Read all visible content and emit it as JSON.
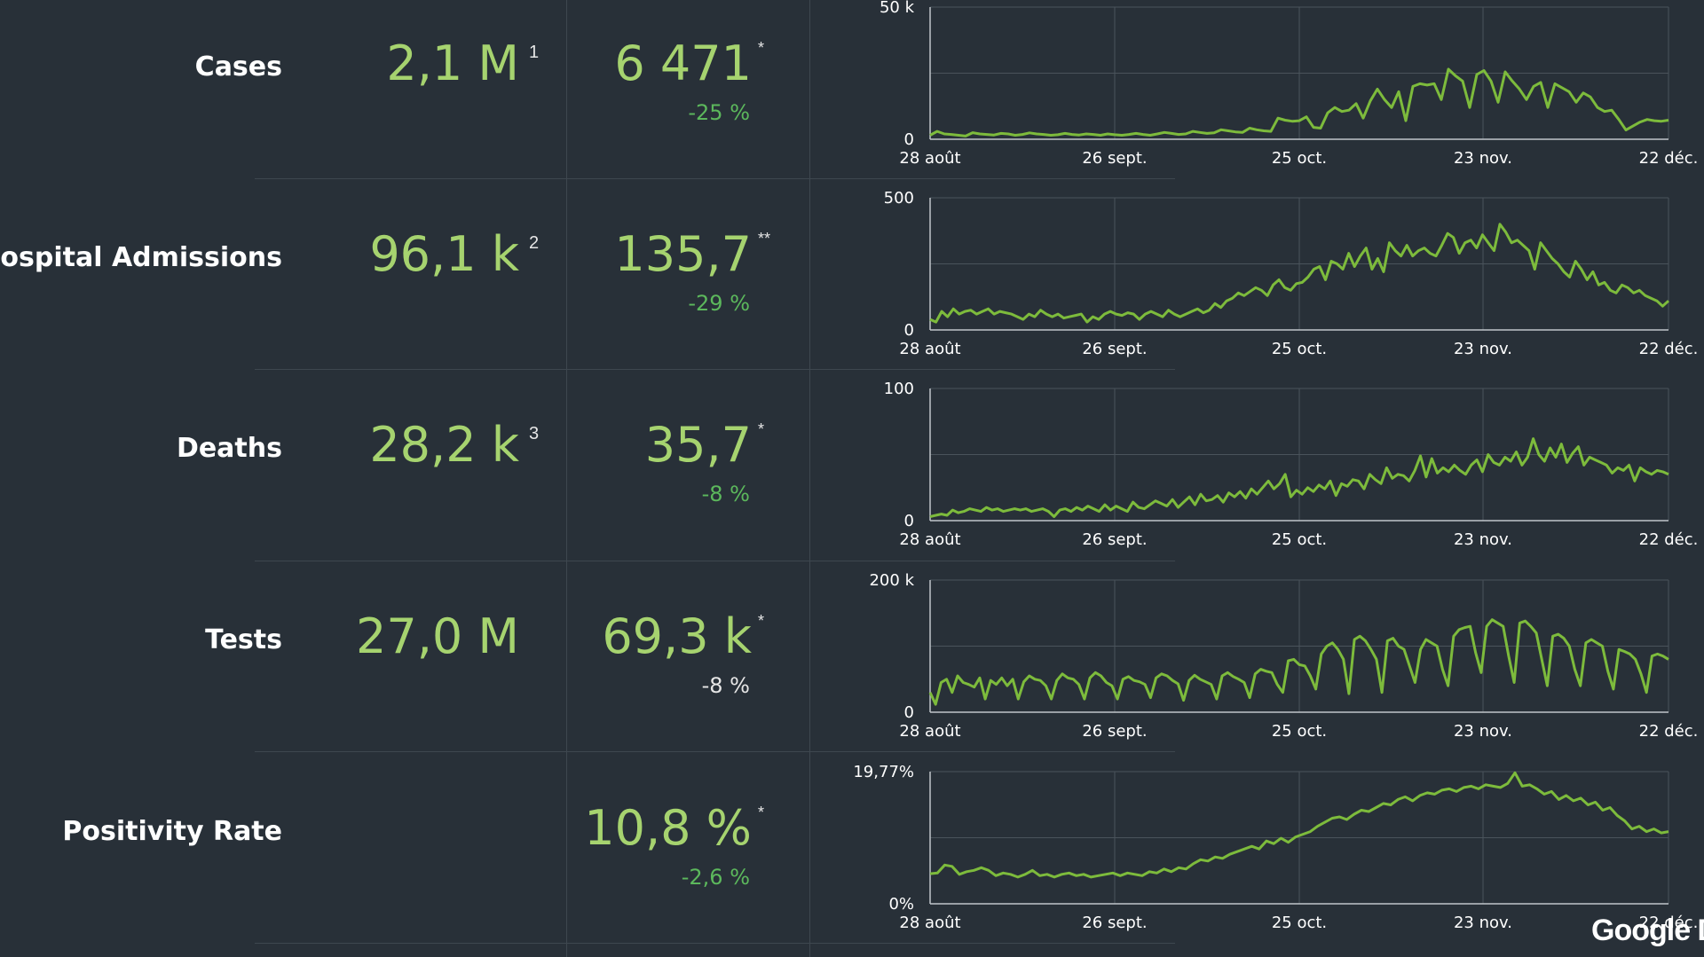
{
  "colors": {
    "background": "#283038",
    "value_green": "#a6d36f",
    "change_green": "#5cb85c",
    "neutral": "#e6e6e6",
    "line": "#7dbb3c",
    "grid": "#4a535b",
    "axis": "#bfc5ca"
  },
  "rows": [
    {
      "label": "Cases",
      "total": "2,1 M",
      "total_sup": "1",
      "recent": "6 471",
      "recent_sup": "*",
      "change": "-25 %",
      "change_color": "#5cb85c"
    },
    {
      "label": "Hospital Admissions",
      "total": "96,1 k",
      "total_sup": "2",
      "recent": "135,7",
      "recent_sup": "**",
      "change": "-29 %",
      "change_color": "#5cb85c"
    },
    {
      "label": "Deaths",
      "total": "28,2 k",
      "total_sup": "3",
      "recent": "35,7",
      "recent_sup": "*",
      "change": "-8 %",
      "change_color": "#5cb85c"
    },
    {
      "label": "Tests",
      "total": "27,0 M",
      "total_sup": "",
      "recent": "69,3 k",
      "recent_sup": "*",
      "change": "-8 %",
      "change_color": "#e6e6e6"
    },
    {
      "label": "Positivity Rate",
      "total": "",
      "total_sup": "",
      "recent": "10,8 %",
      "recent_sup": "*",
      "change": "-2,6 %",
      "change_color": "#5cb85c"
    }
  ],
  "logo_text": "Google D",
  "chart_data": [
    {
      "type": "line",
      "series": [
        {
          "values": [
            1500,
            3000,
            2000,
            1800,
            1500,
            1200,
            2500,
            2000,
            1800,
            1600,
            2200,
            2000,
            1500,
            1800,
            2400,
            2000,
            1800,
            1500,
            1700,
            2200,
            1800,
            1600,
            2000,
            1800,
            1500,
            2000,
            1700,
            1500,
            1800,
            2200,
            1800,
            1500,
            2000,
            2600,
            2200,
            1800,
            2000,
            3000,
            2600,
            2200,
            2400,
            3600,
            3200,
            2800,
            2600,
            4200,
            3600,
            3200,
            3000,
            8000,
            7200,
            6800,
            7000,
            8500,
            4500,
            4200,
            10000,
            12000,
            10500,
            11000,
            13500,
            8000,
            14500,
            19000,
            15000,
            12000,
            18000,
            7000,
            20000,
            21000,
            20500,
            21000,
            15000,
            26500,
            24000,
            22000,
            12000,
            24500,
            26000,
            22000,
            14000,
            25500,
            22000,
            19000,
            15000,
            20000,
            21500,
            12000,
            21000,
            19500,
            18000,
            14000,
            17500,
            16000,
            12000,
            10500,
            11000,
            7500,
            3500,
            5000,
            6500,
            7500,
            7000,
            6800,
            7200
          ]
        }
      ],
      "x_ticks": [
        "28 août",
        "26 sept.",
        "25 oct.",
        "23 nov.",
        "22 déc."
      ],
      "y_ticks": [
        "0",
        "50 k"
      ],
      "ylim": [
        0,
        50000
      ]
    },
    {
      "type": "line",
      "series": [
        {
          "values": [
            40,
            30,
            70,
            50,
            80,
            60,
            70,
            75,
            60,
            70,
            80,
            60,
            70,
            65,
            60,
            50,
            40,
            60,
            50,
            75,
            60,
            50,
            60,
            45,
            50,
            55,
            60,
            30,
            50,
            40,
            60,
            70,
            60,
            55,
            65,
            60,
            40,
            60,
            70,
            60,
            50,
            75,
            60,
            50,
            60,
            70,
            80,
            65,
            75,
            100,
            85,
            110,
            120,
            140,
            130,
            145,
            160,
            150,
            130,
            170,
            190,
            160,
            150,
            175,
            180,
            200,
            230,
            240,
            190,
            260,
            250,
            230,
            290,
            240,
            280,
            310,
            230,
            270,
            220,
            330,
            300,
            280,
            320,
            280,
            300,
            310,
            290,
            280,
            320,
            365,
            350,
            290,
            330,
            340,
            310,
            360,
            330,
            300,
            400,
            370,
            330,
            340,
            320,
            300,
            230,
            330,
            300,
            270,
            250,
            220,
            200,
            260,
            230,
            190,
            220,
            170,
            180,
            150,
            140,
            170,
            160,
            140,
            150,
            130,
            120,
            110,
            90,
            110
          ]
        }
      ],
      "x_ticks": [
        "28 août",
        "26 sept.",
        "25 oct.",
        "23 nov.",
        "22 déc."
      ],
      "y_ticks": [
        "0",
        "500"
      ],
      "ylim": [
        0,
        500
      ]
    },
    {
      "type": "line",
      "series": [
        {
          "values": [
            3,
            4,
            5,
            4,
            8,
            6,
            7,
            9,
            8,
            7,
            10,
            8,
            9,
            7,
            8,
            9,
            8,
            9,
            7,
            8,
            9,
            7,
            3,
            8,
            9,
            7,
            10,
            8,
            11,
            9,
            7,
            12,
            8,
            11,
            9,
            7,
            14,
            10,
            9,
            12,
            15,
            13,
            11,
            16,
            10,
            14,
            18,
            12,
            20,
            15,
            16,
            19,
            14,
            21,
            18,
            22,
            17,
            24,
            20,
            25,
            30,
            24,
            28,
            35,
            18,
            23,
            20,
            25,
            22,
            27,
            24,
            30,
            19,
            28,
            26,
            31,
            30,
            24,
            35,
            31,
            28,
            40,
            32,
            35,
            34,
            30,
            38,
            49,
            33,
            47,
            36,
            40,
            37,
            42,
            38,
            35,
            42,
            46,
            37,
            50,
            44,
            42,
            48,
            45,
            52,
            42,
            48,
            62,
            50,
            45,
            55,
            48,
            58,
            44,
            51,
            56,
            42,
            48,
            46,
            44,
            42,
            36,
            40,
            38,
            42,
            30,
            40,
            37,
            35,
            38,
            37,
            35
          ]
        }
      ],
      "x_ticks": [
        "28 août",
        "26 sept.",
        "25 oct.",
        "23 nov.",
        "22 déc."
      ],
      "y_ticks": [
        "0",
        "100"
      ],
      "ylim": [
        0,
        100
      ]
    },
    {
      "type": "line",
      "series": [
        {
          "values": [
            30000,
            12000,
            45000,
            50000,
            30000,
            55000,
            45000,
            42000,
            38000,
            52000,
            20000,
            48000,
            42000,
            52000,
            40000,
            50000,
            20000,
            46000,
            55000,
            50000,
            48000,
            40000,
            20000,
            48000,
            58000,
            52000,
            50000,
            42000,
            20000,
            52000,
            60000,
            55000,
            45000,
            40000,
            20000,
            50000,
            54000,
            48000,
            46000,
            42000,
            22000,
            52000,
            58000,
            55000,
            48000,
            43000,
            18000,
            48000,
            56000,
            50000,
            46000,
            42000,
            20000,
            55000,
            60000,
            54000,
            50000,
            45000,
            22000,
            58000,
            65000,
            62000,
            60000,
            42000,
            30000,
            78000,
            80000,
            72000,
            70000,
            55000,
            35000,
            88000,
            100000,
            105000,
            95000,
            80000,
            28000,
            110000,
            115000,
            108000,
            95000,
            80000,
            30000,
            108000,
            112000,
            100000,
            95000,
            70000,
            45000,
            95000,
            110000,
            105000,
            100000,
            65000,
            40000,
            115000,
            125000,
            128000,
            130000,
            90000,
            60000,
            130000,
            140000,
            135000,
            130000,
            85000,
            45000,
            135000,
            138000,
            130000,
            120000,
            80000,
            40000,
            115000,
            118000,
            112000,
            100000,
            65000,
            40000,
            105000,
            110000,
            105000,
            100000,
            62000,
            35000,
            95000,
            92000,
            88000,
            80000,
            58000,
            30000,
            85000,
            88000,
            85000,
            80000
          ]
        }
      ],
      "x_ticks": [
        "28 août",
        "26 sept.",
        "25 oct.",
        "23 nov.",
        "22 déc."
      ],
      "y_ticks": [
        "0",
        "200 k"
      ],
      "ylim": [
        0,
        200000
      ]
    },
    {
      "type": "line",
      "series": [
        {
          "values": [
            4.5,
            4.6,
            5.8,
            5.6,
            4.4,
            4.8,
            5.0,
            5.4,
            5.0,
            4.2,
            4.6,
            4.4,
            4.0,
            4.4,
            5.0,
            4.2,
            4.4,
            4.0,
            4.4,
            4.6,
            4.2,
            4.4,
            4.0,
            4.2,
            4.4,
            4.6,
            4.2,
            4.6,
            4.4,
            4.2,
            4.8,
            4.6,
            5.2,
            4.8,
            5.4,
            5.2,
            6.0,
            6.6,
            6.4,
            7.0,
            6.8,
            7.4,
            7.8,
            8.2,
            8.6,
            8.2,
            9.4,
            9.0,
            9.8,
            9.2,
            10.0,
            10.4,
            10.8,
            11.6,
            12.2,
            12.8,
            13.0,
            12.6,
            13.4,
            14.0,
            13.8,
            14.4,
            15.0,
            14.8,
            15.6,
            16.0,
            15.4,
            16.2,
            16.6,
            16.4,
            17.0,
            17.2,
            16.8,
            17.4,
            17.6,
            17.2,
            17.8,
            17.6,
            17.4,
            18.0,
            19.6,
            17.6,
            17.8,
            17.2,
            16.4,
            16.8,
            15.6,
            16.2,
            15.4,
            15.8,
            14.8,
            15.2,
            14.0,
            14.4,
            13.2,
            12.4,
            11.2,
            11.6,
            10.8,
            11.2,
            10.6,
            10.8
          ]
        }
      ],
      "x_ticks": [
        "28 août",
        "26 sept.",
        "25 oct.",
        "23 nov.",
        "22 déc."
      ],
      "y_ticks": [
        "0%",
        "19,77%"
      ],
      "ylim": [
        0,
        19.77
      ]
    }
  ]
}
